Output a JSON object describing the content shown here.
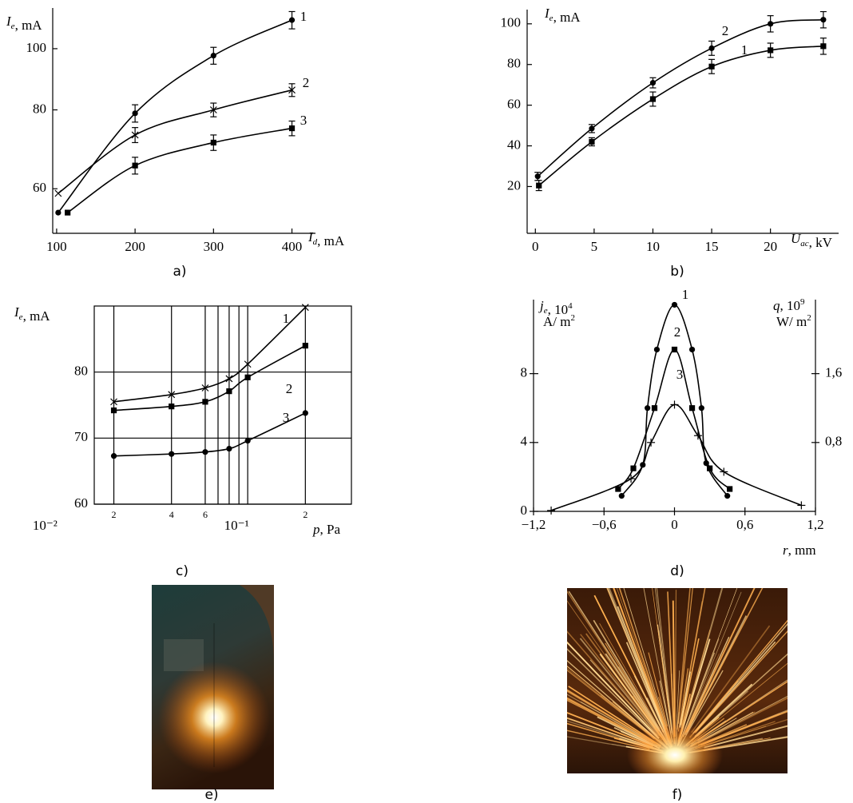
{
  "chart_data": [
    {
      "type": "line",
      "caption": "a)",
      "ylabel": {
        "symbol": "I",
        "sub": "e",
        "unit": ", mA"
      },
      "xlabel": {
        "symbol": "I",
        "sub": "d",
        "unit": ", mA"
      },
      "xlim": [
        95,
        430
      ],
      "ylim": [
        51,
        116
      ],
      "yscale": "log",
      "xticks": [
        100,
        200,
        300,
        400
      ],
      "yticks": [
        60,
        80,
        100
      ],
      "series": [
        {
          "name": "1",
          "marker": "circle",
          "color": "#000000",
          "x": [
            102,
            200,
            300,
            400
          ],
          "values": [
            55,
            79,
            97.5,
            111
          ],
          "errors": [
            null,
            2.5,
            3,
            3.5
          ]
        },
        {
          "name": "2",
          "marker": "cross",
          "color": "#000000",
          "x": [
            102,
            200,
            300,
            400
          ],
          "values": [
            59,
            73,
            80,
            86
          ],
          "errors": [
            null,
            2,
            2,
            2
          ]
        },
        {
          "name": "3",
          "marker": "square",
          "color": "#000000",
          "x": [
            114,
            200,
            300,
            400
          ],
          "values": [
            55,
            65.3,
            71,
            74.8
          ],
          "errors": [
            null,
            2,
            2,
            2
          ]
        }
      ]
    },
    {
      "type": "line",
      "caption": "b)",
      "ylabel": {
        "symbol": "I",
        "sub": "e",
        "unit": ", mA"
      },
      "xlabel": {
        "symbol": "U",
        "sub": "ac",
        "unit": ", kV"
      },
      "xlim": [
        -0.7,
        25.8
      ],
      "ylim": [
        -3,
        107
      ],
      "xticks": [
        0,
        5,
        10,
        15,
        20
      ],
      "yticks": [
        20,
        40,
        60,
        80,
        100
      ],
      "series": [
        {
          "name": "1",
          "marker": "square",
          "color": "#000000",
          "x": [
            0.3,
            4.8,
            10,
            15,
            20,
            24.5
          ],
          "values": [
            20.5,
            42,
            63,
            79,
            87,
            89
          ],
          "errors": [
            2.5,
            2,
            3.5,
            3.5,
            3.5,
            4
          ]
        },
        {
          "name": "2",
          "marker": "circle",
          "color": "#000000",
          "x": [
            0.2,
            4.8,
            10,
            15,
            20,
            24.5
          ],
          "values": [
            25,
            48.5,
            71,
            88,
            100,
            102
          ],
          "errors": [
            2,
            2,
            2.5,
            3.5,
            4,
            4
          ]
        }
      ]
    },
    {
      "type": "line",
      "caption": "c)",
      "ylabel": {
        "symbol": "I",
        "sub": "e",
        "unit": ", mA"
      },
      "xlabel": {
        "symbol": "p",
        "unit": ", Pa"
      },
      "xlim": [
        0.0158,
        0.348
      ],
      "xscale": "log",
      "ylim": [
        60,
        90
      ],
      "grid": true,
      "xticks": [
        {
          "value": 0.01,
          "label": "10⁻²"
        },
        {
          "value": 0.02,
          "label": "2"
        },
        {
          "value": 0.04,
          "label": "4"
        },
        {
          "value": 0.06,
          "label": "6"
        },
        {
          "value": 0.1,
          "label": "10⁻¹"
        },
        {
          "value": 0.2,
          "label": "2"
        }
      ],
      "xminor": [
        0.07,
        0.08,
        0.09
      ],
      "yticks": [
        60,
        70,
        80
      ],
      "series": [
        {
          "name": "1",
          "marker": "cross",
          "color": "#000000",
          "x": [
            0.02,
            0.04,
            0.06,
            0.08,
            0.1,
            0.2
          ],
          "values": [
            75.5,
            76.6,
            77.6,
            79,
            81.2,
            89.8
          ]
        },
        {
          "name": "2",
          "marker": "square",
          "color": "#000000",
          "x": [
            0.02,
            0.04,
            0.06,
            0.08,
            0.1,
            0.2
          ],
          "values": [
            74.2,
            74.8,
            75.5,
            77.1,
            79.2,
            84
          ]
        },
        {
          "name": "3",
          "marker": "circle",
          "color": "#000000",
          "x": [
            0.02,
            0.04,
            0.06,
            0.08,
            0.1,
            0.2
          ],
          "values": [
            67.3,
            67.6,
            67.9,
            68.4,
            69.6,
            73.8
          ]
        }
      ]
    },
    {
      "type": "line",
      "caption": "d)",
      "ylabel": {
        "symbol": "j",
        "sub": "e",
        "unit": ", 10",
        "sup": "4",
        "line2": "A/ m",
        "line2_sup": "2"
      },
      "y2label": {
        "symbol": "q",
        "unit": ", 10",
        "sup": "9",
        "line2": "W/ m",
        "line2_sup": "2"
      },
      "xlabel": {
        "symbol": "r",
        "unit": ", mm"
      },
      "xlim": [
        -1.2,
        1.2
      ],
      "ylim": [
        0,
        12.3
      ],
      "y2lim": [
        0,
        2.46
      ],
      "xticks": [
        {
          "value": -1.2,
          "label": "−1,2"
        },
        {
          "value": -0.6,
          "label": "−0,6"
        },
        0,
        {
          "value": 0.6,
          "label": "0,6"
        },
        {
          "value": 1.2,
          "label": "1,2"
        }
      ],
      "yticks": [
        0,
        4,
        8
      ],
      "y2ticks": [
        {
          "value": 0.8,
          "label": "0,8"
        },
        {
          "value": 1.6,
          "label": "1,6"
        }
      ],
      "series": [
        {
          "name": "1",
          "marker": "circle",
          "color": "#000000",
          "x": [
            -0.45,
            -0.27,
            -0.23,
            -0.15,
            0,
            0.15,
            0.23,
            0.27,
            0.45
          ],
          "values": [
            0.9,
            2.7,
            6,
            9.4,
            12,
            9.4,
            6,
            2.8,
            0.9
          ]
        },
        {
          "name": "2",
          "marker": "square",
          "color": "#000000",
          "x": [
            -0.48,
            -0.35,
            -0.17,
            0,
            0.15,
            0.3,
            0.47
          ],
          "values": [
            1.3,
            2.5,
            6,
            9.4,
            6,
            2.5,
            1.3
          ]
        },
        {
          "name": "3",
          "marker": "plus",
          "color": "#000000",
          "x": [
            -1.05,
            -0.37,
            -0.2,
            0,
            0.2,
            0.42,
            1.08
          ],
          "values": [
            0.05,
            1.9,
            4,
            6.2,
            4.4,
            2.3,
            0.35
          ]
        }
      ]
    }
  ],
  "photos": [
    {
      "caption": "e)"
    },
    {
      "caption": "f)"
    }
  ]
}
